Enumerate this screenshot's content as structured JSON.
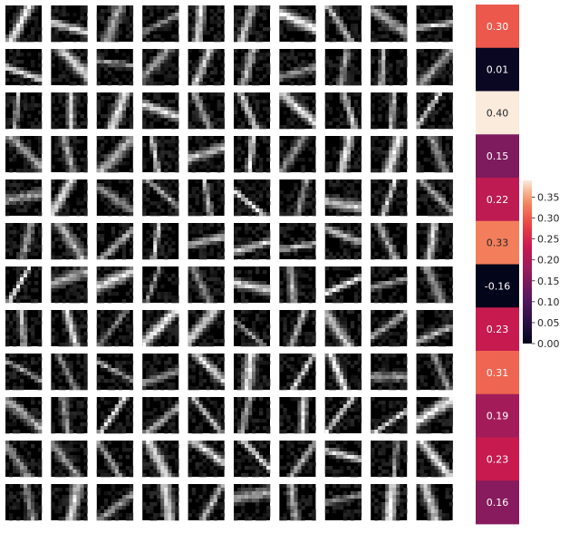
{
  "chart_data": [
    {
      "type": "image-grid",
      "rows": 12,
      "cols": 10
    },
    {
      "type": "heatmap",
      "colormap": "rocket",
      "values": [
        0.3,
        0.01,
        0.4,
        0.15,
        0.22,
        0.33,
        -0.16,
        0.23,
        0.31,
        0.19,
        0.23,
        0.16
      ],
      "labels": [
        "0.30",
        "0.01",
        "0.40",
        "0.15",
        "0.22",
        "0.33",
        "-0.16",
        "0.23",
        "0.31",
        "0.19",
        "0.23",
        "0.16"
      ],
      "colorbar": {
        "range": [
          0.0,
          0.39
        ],
        "ticks": [
          0.0,
          0.05,
          0.1,
          0.15,
          0.2,
          0.25,
          0.3,
          0.35
        ],
        "tick_labels": [
          "0.00",
          "0.05",
          "0.10",
          "0.15",
          "0.20",
          "0.25",
          "0.30",
          "0.35"
        ]
      }
    }
  ]
}
